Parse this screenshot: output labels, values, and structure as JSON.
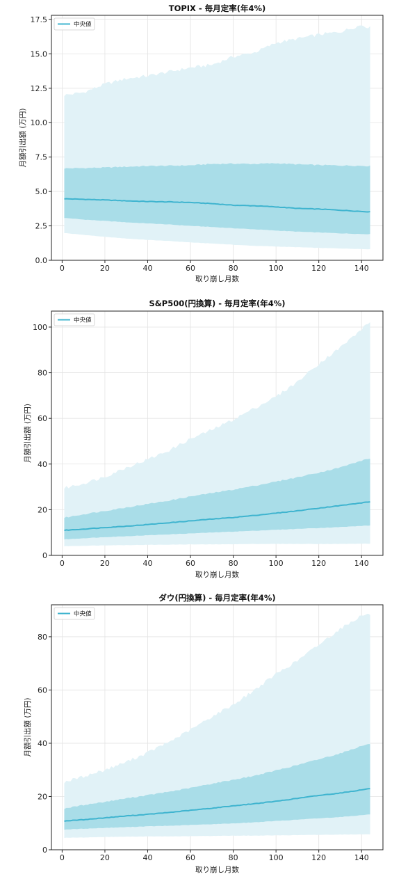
{
  "colors": {
    "median": "#3fb4cf",
    "inner_band": "#a9dde8",
    "outer_band": "#e1f2f7",
    "grid": "#e3e3e3",
    "axis": "#222222"
  },
  "chart_data": [
    {
      "type": "area",
      "title": "TOPIX - 毎月定率(年4%)",
      "xlabel": "取り崩し月数",
      "ylabel": "月額引出額 (万円)",
      "legend": "中央値",
      "legend_position": "top-left",
      "grid": true,
      "xlim": [
        -5,
        150
      ],
      "ylim": [
        0,
        17.8
      ],
      "xticks": [
        0,
        20,
        40,
        60,
        80,
        100,
        120,
        140
      ],
      "xtick_labels": [
        "0",
        "20",
        "40",
        "60",
        "80",
        "100",
        "120",
        "140"
      ],
      "yticks": [
        0,
        2.5,
        5,
        7.5,
        10,
        12.5,
        15,
        17.5
      ],
      "ytick_labels": [
        "0.0",
        "2.5",
        "5.0",
        "7.5",
        "10.0",
        "12.5",
        "15.0",
        "17.5"
      ],
      "x": [
        1,
        10,
        20,
        30,
        40,
        50,
        60,
        70,
        80,
        90,
        100,
        110,
        120,
        130,
        140,
        144
      ],
      "series": [
        {
          "name": "中央値",
          "values": [
            4.47,
            4.43,
            4.38,
            4.32,
            4.27,
            4.24,
            4.2,
            4.12,
            4.0,
            3.96,
            3.88,
            3.77,
            3.72,
            3.64,
            3.55,
            3.52
          ]
        },
        {
          "name": "inner_lower",
          "values": [
            3.08,
            2.96,
            2.86,
            2.76,
            2.68,
            2.6,
            2.5,
            2.42,
            2.33,
            2.25,
            2.16,
            2.08,
            2.02,
            1.96,
            1.91,
            1.9
          ]
        },
        {
          "name": "inner_upper",
          "values": [
            6.68,
            6.7,
            6.74,
            6.8,
            6.85,
            6.87,
            6.9,
            7.0,
            7.02,
            7.0,
            7.05,
            6.97,
            6.92,
            6.89,
            6.87,
            6.85
          ]
        },
        {
          "name": "outer_lower",
          "values": [
            1.98,
            1.85,
            1.7,
            1.58,
            1.48,
            1.4,
            1.3,
            1.22,
            1.13,
            1.05,
            1.0,
            0.95,
            0.9,
            0.86,
            0.82,
            0.8
          ]
        },
        {
          "name": "outer_upper",
          "values": [
            12.0,
            12.2,
            12.8,
            13.2,
            13.4,
            13.7,
            14.0,
            14.2,
            14.8,
            15.1,
            15.8,
            16.1,
            16.4,
            16.6,
            17.1,
            16.9
          ]
        }
      ]
    },
    {
      "type": "area",
      "title": "S&P500(円換算) - 毎月定率(年4%)",
      "xlabel": "取り崩し月数",
      "ylabel": "月額引出額 (万円)",
      "legend": "中央値",
      "legend_position": "top-left",
      "grid": true,
      "xlim": [
        -5,
        150
      ],
      "ylim": [
        0,
        107
      ],
      "xticks": [
        0,
        20,
        40,
        60,
        80,
        100,
        120,
        140
      ],
      "xtick_labels": [
        "0",
        "20",
        "40",
        "60",
        "80",
        "100",
        "120",
        "140"
      ],
      "yticks": [
        0,
        20,
        40,
        60,
        80,
        100
      ],
      "ytick_labels": [
        "0",
        "20",
        "40",
        "60",
        "80",
        "100"
      ],
      "x": [
        1,
        10,
        20,
        30,
        40,
        50,
        60,
        70,
        80,
        90,
        100,
        110,
        120,
        130,
        140,
        144
      ],
      "series": [
        {
          "name": "中央値",
          "values": [
            11,
            11.5,
            12.2,
            12.8,
            13.5,
            14.3,
            15.1,
            15.9,
            16.6,
            17.5,
            18.5,
            19.5,
            20.7,
            21.8,
            23.0,
            23.5
          ]
        },
        {
          "name": "inner_lower",
          "values": [
            7.0,
            7.5,
            8.0,
            8.4,
            8.8,
            9.2,
            9.6,
            10.0,
            10.4,
            10.8,
            11.2,
            11.6,
            12.0,
            12.4,
            12.9,
            13.1
          ]
        },
        {
          "name": "inner_upper",
          "values": [
            16.5,
            18.0,
            19.5,
            21.0,
            22.5,
            24.0,
            25.8,
            27.3,
            28.8,
            30.5,
            32.3,
            34.2,
            36.3,
            38.5,
            41.5,
            42.5
          ]
        },
        {
          "name": "outer_lower",
          "values": [
            4.0,
            4.2,
            4.4,
            4.5,
            4.6,
            4.7,
            4.8,
            4.8,
            4.9,
            5.0,
            5.0,
            5.0,
            5.0,
            5.0,
            5.1,
            5.1
          ]
        },
        {
          "name": "outer_upper",
          "values": [
            29.5,
            31.5,
            34.5,
            38.5,
            42.0,
            46.0,
            51.0,
            55.0,
            59.5,
            64.5,
            69.5,
            76.0,
            84.0,
            91.0,
            99.0,
            102.5
          ]
        }
      ]
    },
    {
      "type": "area",
      "title": "ダウ(円換算) - 毎月定率(年4%)",
      "xlabel": "取り崩し月数",
      "ylabel": "月額引出額 (万円)",
      "legend": "中央値",
      "legend_position": "top-left",
      "grid": true,
      "xlim": [
        -5,
        150
      ],
      "ylim": [
        0,
        92
      ],
      "xticks": [
        0,
        20,
        40,
        60,
        80,
        100,
        120,
        140
      ],
      "xtick_labels": [
        "0",
        "20",
        "40",
        "60",
        "80",
        "100",
        "120",
        "140"
      ],
      "yticks": [
        0,
        20,
        40,
        60,
        80
      ],
      "ytick_labels": [
        "0",
        "20",
        "40",
        "60",
        "80"
      ],
      "x": [
        1,
        10,
        20,
        30,
        40,
        50,
        60,
        70,
        80,
        90,
        100,
        110,
        120,
        130,
        140,
        144
      ],
      "series": [
        {
          "name": "中央値",
          "values": [
            10.8,
            11.3,
            12.0,
            12.7,
            13.3,
            14.0,
            14.8,
            15.6,
            16.5,
            17.3,
            18.2,
            19.3,
            20.4,
            21.3,
            22.5,
            23.0
          ]
        },
        {
          "name": "inner_lower",
          "values": [
            7.6,
            7.9,
            8.2,
            8.5,
            8.8,
            9.0,
            9.3,
            9.6,
            9.9,
            10.3,
            10.8,
            11.3,
            11.8,
            12.3,
            13.0,
            13.3
          ]
        },
        {
          "name": "inner_upper",
          "values": [
            15.5,
            16.8,
            18.0,
            19.3,
            20.5,
            21.8,
            23.2,
            24.8,
            26.3,
            27.8,
            29.8,
            31.8,
            34.0,
            36.2,
            39.0,
            39.8
          ]
        },
        {
          "name": "outer_lower",
          "values": [
            4.5,
            4.6,
            4.8,
            4.9,
            5.0,
            5.0,
            5.1,
            5.2,
            5.3,
            5.3,
            5.4,
            5.5,
            5.6,
            5.7,
            5.8,
            5.8
          ]
        },
        {
          "name": "outer_upper",
          "values": [
            25.5,
            27.5,
            30.0,
            33.0,
            36.5,
            40.5,
            45.0,
            50.0,
            54.5,
            60.0,
            66.0,
            71.0,
            77.0,
            83.0,
            88.0,
            88.5
          ]
        }
      ]
    }
  ]
}
